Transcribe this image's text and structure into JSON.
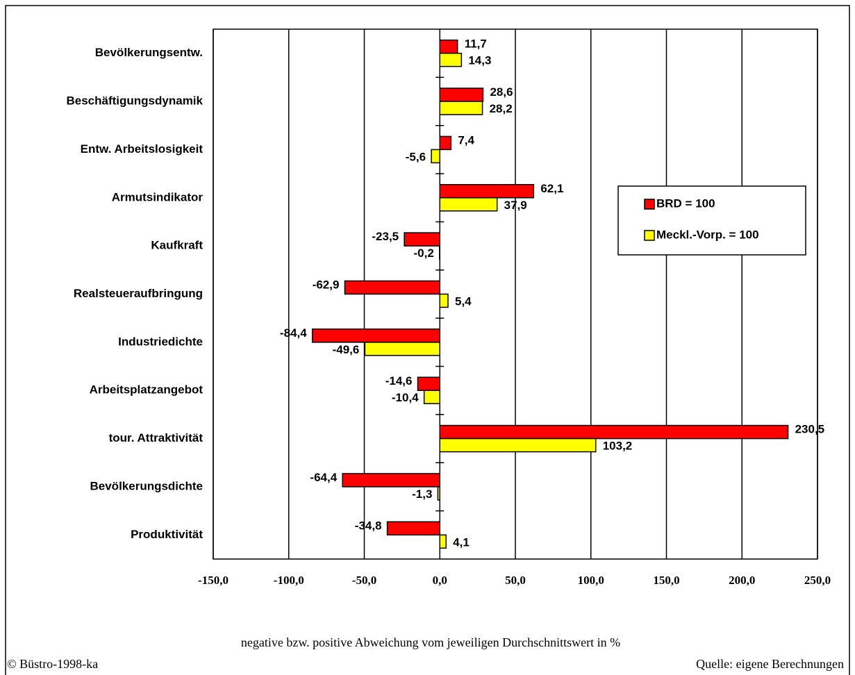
{
  "chart_data": {
    "type": "barh",
    "categories": [
      "Bevölkerungsentw.",
      "Beschäftigungsdynamik",
      "Entw. Arbeitslosigkeit",
      "Armutsindikator",
      "Kaufkraft",
      "Realsteueraufbringung",
      "Industriedichte",
      "Arbeitsplatzangebot",
      "tour. Attraktivität",
      "Bevölkerungsdichte",
      "Produktivität"
    ],
    "series": [
      {
        "name": "BRD = 100",
        "color": "#ff0000",
        "values": [
          11.7,
          28.6,
          7.4,
          62.1,
          -23.5,
          -62.9,
          -84.4,
          -14.6,
          230.5,
          -64.4,
          -34.8
        ],
        "value_labels": [
          "11,7",
          "28,6",
          "7,4",
          "62,1",
          "-23,5",
          "-62,9",
          "-84,4",
          "-14,6",
          "230,5",
          "-64,4",
          "-34,8"
        ]
      },
      {
        "name": "Meckl.-Vorp. = 100",
        "color": "#ffff00",
        "values": [
          14.3,
          28.2,
          -5.6,
          37.9,
          -0.2,
          5.4,
          -49.6,
          -10.4,
          103.2,
          -1.3,
          4.1
        ],
        "value_labels": [
          "14,3",
          "28,2",
          "-5,6",
          "37,9",
          "-0,2",
          "5,4",
          "-49,6",
          "-10,4",
          "103,2",
          "-1,3",
          "4,1"
        ]
      }
    ],
    "xlim": [
      -150,
      250
    ],
    "xticks": [
      {
        "value": -150,
        "label": "-150,0"
      },
      {
        "value": -100,
        "label": "-100,0"
      },
      {
        "value": -50,
        "label": "-50,0"
      },
      {
        "value": 0,
        "label": "0,0"
      },
      {
        "value": 50,
        "label": "50,0"
      },
      {
        "value": 100,
        "label": "100,0"
      },
      {
        "value": 150,
        "label": "150,0"
      },
      {
        "value": 200,
        "label": "200,0"
      },
      {
        "value": 250,
        "label": "250,0"
      }
    ],
    "grid": true,
    "legend": "right",
    "xlabel": "negative bzw. positive Abweichung vom jeweiligen Durchschnittswert in %",
    "footer_left": "© Büstro-1998-ka",
    "footer_right": "Quelle: eigene Berechnungen"
  }
}
